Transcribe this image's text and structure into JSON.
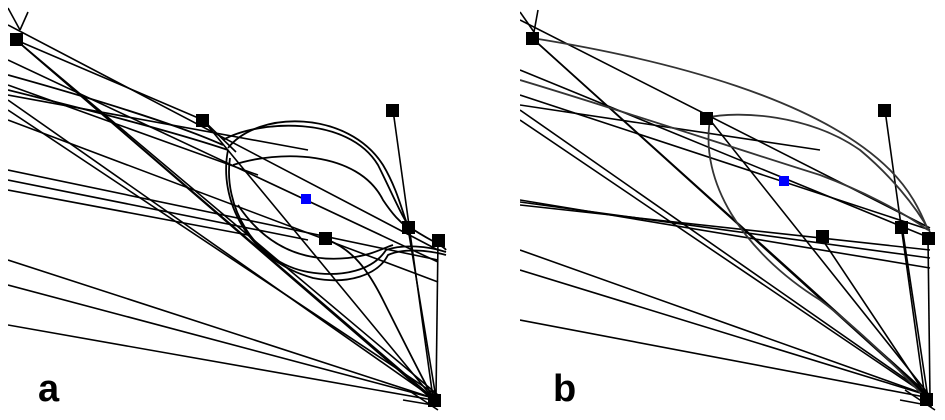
{
  "colors": {
    "line": "#000000",
    "curve": "#333333",
    "control_point": "#000000",
    "center_point": "#0000ff",
    "background": "#ffffff"
  },
  "panels": [
    {
      "label": "a"
    },
    {
      "label": "b"
    }
  ]
}
